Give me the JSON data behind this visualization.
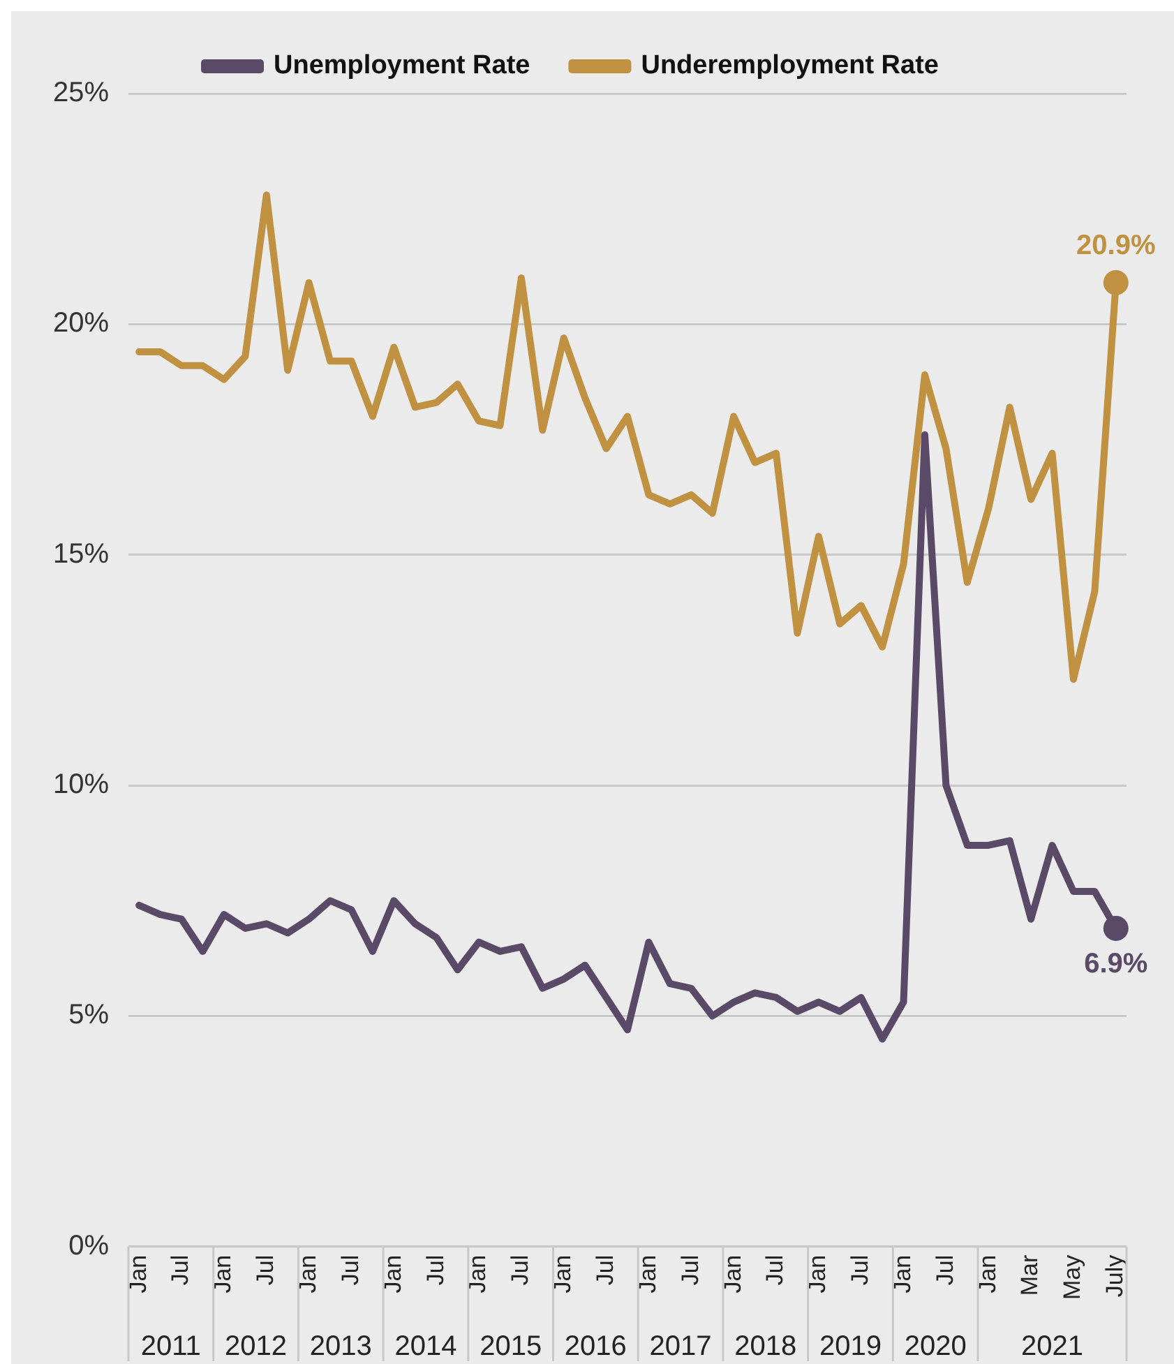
{
  "chart_data": {
    "type": "line",
    "categories": [
      "Jan",
      null,
      "Jul",
      null,
      "Jan",
      null,
      "Jul",
      null,
      "Jan",
      null,
      "Jul",
      null,
      "Jan",
      null,
      "Jul",
      null,
      "Jan",
      null,
      "Jul",
      null,
      "Jan",
      null,
      "Jul",
      null,
      "Jan",
      null,
      "Jul",
      null,
      "Jan",
      null,
      "Jul",
      null,
      "Jan",
      null,
      "Jul",
      null,
      "Jan",
      null,
      "Jul",
      null,
      "Jan",
      null,
      "Mar",
      null,
      "May",
      null,
      "July"
    ],
    "series": [
      {
        "name": "Unemployment Rate",
        "color": "#5a4a68",
        "values": [
          7.4,
          7.2,
          7.1,
          6.4,
          7.2,
          6.9,
          7.0,
          6.8,
          7.1,
          7.5,
          7.3,
          6.4,
          7.5,
          7.0,
          6.7,
          6.0,
          6.6,
          6.4,
          6.5,
          5.6,
          5.8,
          6.1,
          5.4,
          4.7,
          6.6,
          5.7,
          5.6,
          5.0,
          5.3,
          5.5,
          5.4,
          5.1,
          5.3,
          5.1,
          5.4,
          4.5,
          5.3,
          17.6,
          10.0,
          8.7,
          8.7,
          8.8,
          7.1,
          8.7,
          7.7,
          7.7,
          6.9
        ],
        "value_labels": [
          null,
          null,
          null,
          null,
          null,
          null,
          null,
          null,
          null,
          null,
          null,
          null,
          null,
          null,
          null,
          null,
          null,
          null,
          null,
          null,
          null,
          null,
          null,
          null,
          null,
          null,
          null,
          null,
          null,
          null,
          null,
          null,
          null,
          null,
          null,
          null,
          null,
          null,
          null,
          null,
          null,
          null,
          null,
          null,
          null,
          null,
          "6.9%"
        ]
      },
      {
        "name": "Underemployment Rate",
        "color": "#c09140",
        "values": [
          19.4,
          19.4,
          19.1,
          19.1,
          18.8,
          19.3,
          22.8,
          19.0,
          20.9,
          19.2,
          19.2,
          18.0,
          19.5,
          18.2,
          18.3,
          18.7,
          17.9,
          17.8,
          21.0,
          17.7,
          19.7,
          18.4,
          17.3,
          18.0,
          16.3,
          16.1,
          16.3,
          15.9,
          18.0,
          17.0,
          17.2,
          13.3,
          15.4,
          13.5,
          13.9,
          13.0,
          14.8,
          18.9,
          17.3,
          14.4,
          16.0,
          18.2,
          16.2,
          17.2,
          12.3,
          14.2,
          20.9
        ],
        "value_labels": [
          null,
          null,
          null,
          null,
          null,
          null,
          null,
          null,
          null,
          null,
          null,
          null,
          null,
          null,
          null,
          null,
          null,
          null,
          null,
          null,
          null,
          null,
          null,
          null,
          null,
          null,
          null,
          null,
          null,
          null,
          null,
          null,
          null,
          null,
          null,
          null,
          null,
          null,
          null,
          null,
          null,
          null,
          null,
          null,
          null,
          null,
          "20.9%"
        ]
      }
    ],
    "ylim": [
      0,
      25
    ],
    "yticks": [
      {
        "value": 0,
        "label": "0%"
      },
      {
        "value": 5,
        "label": "5%"
      },
      {
        "value": 10,
        "label": "10%"
      },
      {
        "value": 15,
        "label": "15%"
      },
      {
        "value": 20,
        "label": "20%"
      },
      {
        "value": 25,
        "label": "25%"
      }
    ],
    "grid": "y",
    "legend": "top",
    "line_style": "solid",
    "annotations": [
      "2011",
      "2012",
      "2013",
      "2014",
      "2015",
      "2016",
      "2017",
      "2018",
      "2019",
      "2020",
      "2021"
    ]
  }
}
